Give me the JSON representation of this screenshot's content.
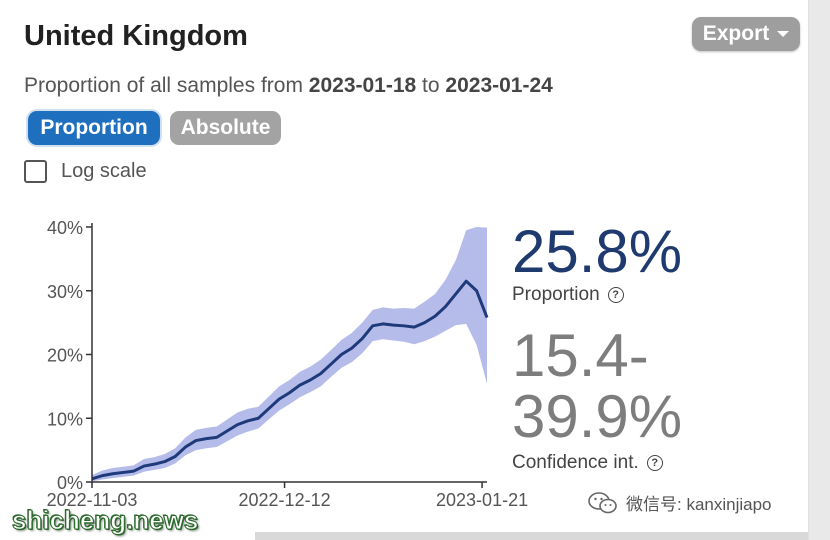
{
  "header": {
    "title": "United Kingdom",
    "export_label": "Export"
  },
  "subtitle": {
    "prefix": "Proportion of all samples from ",
    "start_date": "2023-01-18",
    "middle": " to ",
    "end_date": "2023-01-24"
  },
  "toggles": {
    "proportion_label": "Proportion",
    "absolute_label": "Absolute"
  },
  "log_scale": {
    "label": "Log scale",
    "checked": false
  },
  "stats": {
    "proportion_value": "25.8%",
    "proportion_label": "Proportion",
    "ci_line1": "15.4-",
    "ci_line2": "39.9%",
    "ci_label": "Confidence int.",
    "help_glyph": "?"
  },
  "watermarks": {
    "left": "shicheng.news",
    "right": "微信号: kanxinjiapo"
  },
  "colors": {
    "line": "#1e3a7a",
    "band": "#a8b0e6",
    "active_toggle": "#1f6fbf",
    "inactive_toggle": "#a3a3a3"
  },
  "chart_data": {
    "type": "line",
    "x_start": "2022-11-03",
    "x_end": "2023-01-22",
    "xticks": [
      "2022-11-03",
      "2022-12-12",
      "2023-01-21"
    ],
    "yticks": [
      "0%",
      "10%",
      "20%",
      "30%",
      "40%"
    ],
    "ylim": [
      0,
      40
    ],
    "grid": false,
    "series": [
      {
        "values": [
          0.5,
          1.0,
          1.3,
          1.5,
          1.7,
          2.5,
          2.8,
          3.2,
          4.0,
          5.5,
          6.5,
          6.8,
          7.0,
          8.0,
          9.0,
          9.6,
          10.0,
          11.5,
          13.0,
          14.0,
          15.2,
          16.0,
          17.0,
          18.5,
          20.0,
          21.0,
          22.5,
          24.5,
          24.8,
          24.6,
          24.5,
          24.3,
          25.0,
          26.0,
          27.5,
          29.5,
          31.5,
          30.0,
          25.8
        ],
        "lower": [
          0.1,
          0.4,
          0.6,
          0.8,
          1.0,
          1.6,
          1.9,
          2.2,
          2.9,
          4.2,
          5.0,
          5.3,
          5.5,
          6.4,
          7.3,
          7.9,
          8.4,
          9.8,
          11.2,
          12.2,
          13.3,
          14.1,
          15.0,
          16.5,
          17.9,
          18.8,
          20.2,
          22.1,
          22.4,
          22.2,
          22.0,
          21.6,
          22.1,
          22.8,
          23.7,
          24.6,
          24.8,
          21.5,
          15.4
        ],
        "upper": [
          1.1,
          1.8,
          2.2,
          2.4,
          2.6,
          3.6,
          3.9,
          4.4,
          5.3,
          7.0,
          8.2,
          8.5,
          8.7,
          9.8,
          10.9,
          11.5,
          11.8,
          13.4,
          15.0,
          16.0,
          17.3,
          18.1,
          19.2,
          20.7,
          22.3,
          23.4,
          25.0,
          27.0,
          27.4,
          27.2,
          27.3,
          27.2,
          28.3,
          29.5,
          31.7,
          34.8,
          39.5,
          40.0,
          39.9
        ]
      }
    ]
  }
}
